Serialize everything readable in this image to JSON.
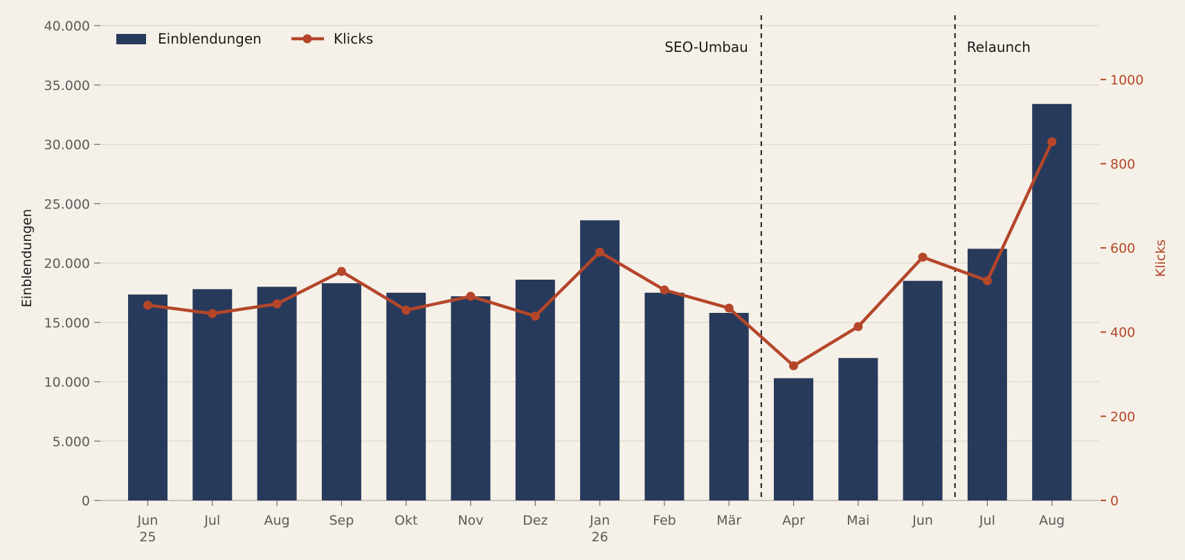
{
  "chart_data": {
    "type": "bar",
    "categories": [
      "Jun\n25",
      "Jul",
      "Aug",
      "Sep",
      "Okt",
      "Nov",
      "Dez",
      "Jan\n26",
      "Feb",
      "Mär",
      "Apr",
      "Mai",
      "Jun",
      "Jul",
      "Aug"
    ],
    "series": [
      {
        "name": "Einblendungen",
        "type": "bar",
        "axis": "left",
        "color": "#283a5b",
        "values": [
          17350,
          17800,
          18000,
          18300,
          17500,
          17200,
          18600,
          23600,
          17500,
          15800,
          10300,
          12000,
          18500,
          21200,
          33400
        ]
      },
      {
        "name": "Klicks",
        "type": "line",
        "axis": "right",
        "color": "#b5462a",
        "values": [
          464,
          444,
          467,
          544,
          452,
          485,
          438,
          590,
          500,
          457,
          320,
          413,
          578,
          522,
          852
        ]
      }
    ],
    "ylabel": "Einblendungen",
    "ylim": [
      0,
      40000
    ],
    "yticks": [
      "0",
      "5.000",
      "10.000",
      "15.000",
      "20.000",
      "25.000",
      "30.000",
      "35.000",
      "40.000"
    ],
    "y2label": "Klicks",
    "y2lim": [
      0,
      1128
    ],
    "y2ticks": [
      "0",
      "200",
      "400",
      "600",
      "800",
      "1000"
    ],
    "y2_color": "#b5462a",
    "grid": true,
    "legend_placement": "top-left",
    "annotations": [
      {
        "label": "SEO-Umbau",
        "between": [
          "Mär",
          "Apr"
        ]
      },
      {
        "label": "Relaunch",
        "between": [
          "Jun",
          "Jul"
        ]
      }
    ]
  }
}
